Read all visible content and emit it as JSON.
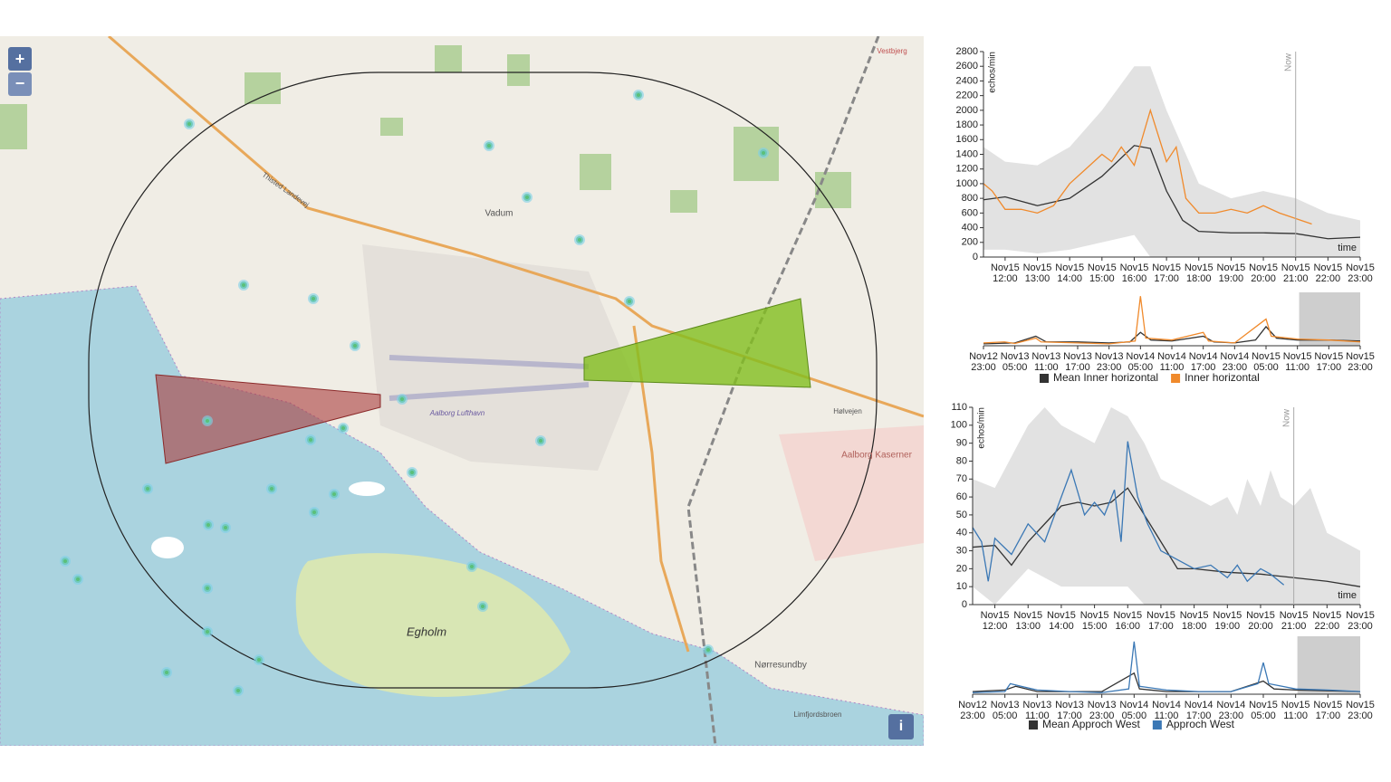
{
  "map": {
    "zoom_in": "+",
    "zoom_out": "−",
    "info": "i",
    "labels": [
      "Vadum",
      "Egholm",
      "Nørresundby",
      "Aalborg Lufthavn",
      "Aalborg Kaserner",
      "Limfjordsbroen",
      "Thisted Landevej",
      "Vestbjerg",
      "Hølvejen"
    ]
  },
  "chart_data": [
    {
      "type": "line",
      "ylabel": "echos/min",
      "xlabel": "time",
      "xlim": [
        11.33,
        23
      ],
      "ylim": [
        0,
        2800
      ],
      "yticks": [
        0,
        200,
        400,
        600,
        800,
        1000,
        1200,
        1400,
        1600,
        1800,
        2000,
        2200,
        2400,
        2600,
        2800
      ],
      "xticks": [
        {
          "value": 12,
          "label": "Nov15 12:00"
        },
        {
          "value": 13,
          "label": "Nov15 13:00"
        },
        {
          "value": 14,
          "label": "Nov15 14:00"
        },
        {
          "value": 15,
          "label": "Nov15 15:00"
        },
        {
          "value": 16,
          "label": "Nov15 16:00"
        },
        {
          "value": 17,
          "label": "Nov15 17:00"
        },
        {
          "value": 18,
          "label": "Nov15 18:00"
        },
        {
          "value": 19,
          "label": "Nov15 19:00"
        },
        {
          "value": 20,
          "label": "Nov15 20:00"
        },
        {
          "value": 21,
          "label": "Nov15 21:00"
        },
        {
          "value": 22,
          "label": "Nov15 22:00"
        },
        {
          "value": 23,
          "label": "Nov15 23:00"
        }
      ],
      "now": {
        "x": 21,
        "label": "Now"
      },
      "range": {
        "color": "#e2e2e2",
        "x": [
          11.33,
          12,
          13,
          14,
          15,
          16,
          16.5,
          17,
          18,
          19,
          20,
          21,
          22,
          23
        ],
        "high": [
          1500,
          1300,
          1250,
          1500,
          2000,
          2600,
          2600,
          2000,
          1000,
          800,
          900,
          800,
          600,
          500
        ],
        "low": [
          100,
          100,
          50,
          100,
          200,
          300,
          0,
          0,
          0,
          0,
          0,
          0,
          0,
          0
        ]
      },
      "series": [
        {
          "color": "#333333",
          "x": [
            11.33,
            12,
            13,
            14,
            15,
            16,
            16.5,
            17,
            17.5,
            18,
            19,
            20,
            21,
            22,
            23
          ],
          "values": [
            780,
            820,
            700,
            800,
            1100,
            1520,
            1480,
            900,
            500,
            350,
            330,
            330,
            320,
            250,
            270
          ]
        },
        {
          "color": "#f08a2c",
          "x": [
            11.33,
            11.6,
            12,
            12.5,
            13,
            13.5,
            14,
            14.5,
            15,
            15.3,
            15.6,
            16,
            16.5,
            17,
            17.3,
            17.6,
            18,
            18.5,
            19,
            19.5,
            20,
            20.5,
            21.5
          ],
          "values": [
            1000,
            900,
            650,
            650,
            600,
            700,
            1000,
            1200,
            1400,
            1300,
            1500,
            1250,
            2000,
            1300,
            1500,
            800,
            600,
            600,
            650,
            600,
            700,
            600,
            450
          ]
        }
      ]
    },
    {
      "type": "line",
      "xlim": [
        0,
        72
      ],
      "ylim": [
        0,
        2800
      ],
      "brush": [
        60.33,
        72
      ],
      "xticks": [
        {
          "value": 0,
          "label": "Nov12 23:00"
        },
        {
          "value": 6,
          "label": "Nov13 05:00"
        },
        {
          "value": 12,
          "label": "Nov13 11:00"
        },
        {
          "value": 18,
          "label": "Nov13 17:00"
        },
        {
          "value": 24,
          "label": "Nov13 23:00"
        },
        {
          "value": 30,
          "label": "Nov14 05:00"
        },
        {
          "value": 36,
          "label": "Nov14 11:00"
        },
        {
          "value": 42,
          "label": "Nov14 17:00"
        },
        {
          "value": 48,
          "label": "Nov14 23:00"
        },
        {
          "value": 54,
          "label": "Nov15 05:00"
        },
        {
          "value": 60,
          "label": "Nov15 11:00"
        },
        {
          "value": 66,
          "label": "Nov15 17:00"
        },
        {
          "value": 72,
          "label": "Nov15 23:00"
        }
      ],
      "series": [
        {
          "name": "Mean Inner horizontal",
          "color": "#333333",
          "x": [
            0,
            6,
            10,
            12,
            18,
            24,
            28,
            30,
            32,
            36,
            42,
            44,
            48,
            52,
            54,
            56,
            60,
            66,
            72
          ],
          "values": [
            100,
            150,
            500,
            200,
            200,
            150,
            200,
            700,
            300,
            250,
            500,
            200,
            150,
            300,
            1000,
            400,
            300,
            300,
            250
          ]
        },
        {
          "name": "Inner horizontal",
          "color": "#f08a2c",
          "x": [
            0,
            4,
            6,
            10,
            11,
            18,
            24,
            29,
            30,
            31,
            36,
            42,
            43,
            48,
            54,
            55,
            60,
            66,
            72
          ],
          "values": [
            150,
            200,
            120,
            400,
            200,
            150,
            100,
            250,
            2600,
            400,
            300,
            700,
            250,
            150,
            1400,
            500,
            350,
            300,
            200
          ]
        }
      ]
    },
    {
      "type": "line",
      "ylabel": "echos/min",
      "xlabel": "time",
      "xlim": [
        11.33,
        23
      ],
      "ylim": [
        0,
        110
      ],
      "yticks": [
        0,
        10,
        20,
        30,
        40,
        50,
        60,
        70,
        80,
        90,
        100,
        110
      ],
      "xticks": [
        {
          "value": 12,
          "label": "Nov15 12:00"
        },
        {
          "value": 13,
          "label": "Nov15 13:00"
        },
        {
          "value": 14,
          "label": "Nov15 14:00"
        },
        {
          "value": 15,
          "label": "Nov15 15:00"
        },
        {
          "value": 16,
          "label": "Nov15 16:00"
        },
        {
          "value": 17,
          "label": "Nov15 17:00"
        },
        {
          "value": 18,
          "label": "Nov15 18:00"
        },
        {
          "value": 19,
          "label": "Nov15 19:00"
        },
        {
          "value": 20,
          "label": "Nov15 20:00"
        },
        {
          "value": 21,
          "label": "Nov15 21:00"
        },
        {
          "value": 22,
          "label": "Nov15 22:00"
        },
        {
          "value": 23,
          "label": "Nov15 23:00"
        }
      ],
      "now": {
        "x": 21,
        "label": "Now"
      },
      "range": {
        "color": "#e2e2e2",
        "x": [
          11.33,
          12,
          13,
          13.5,
          14,
          15,
          15.5,
          16,
          16.5,
          17,
          18,
          18.5,
          19,
          19.3,
          19.6,
          20,
          20.3,
          20.6,
          21,
          21.5,
          22,
          23
        ],
        "high": [
          70,
          65,
          100,
          110,
          100,
          90,
          110,
          105,
          90,
          70,
          60,
          55,
          60,
          50,
          70,
          55,
          75,
          60,
          55,
          65,
          40,
          30
        ],
        "low": [
          10,
          0,
          20,
          15,
          10,
          10,
          10,
          10,
          0,
          0,
          0,
          0,
          0,
          0,
          0,
          0,
          0,
          0,
          0,
          0,
          0,
          0
        ]
      },
      "series": [
        {
          "color": "#333333",
          "x": [
            11.33,
            12,
            12.5,
            13,
            14,
            14.5,
            15,
            15.5,
            16,
            16.5,
            17,
            17.5,
            18,
            19,
            20,
            21,
            22,
            23
          ],
          "values": [
            32,
            33,
            22,
            35,
            55,
            57,
            55,
            57,
            65,
            50,
            35,
            20,
            20,
            18,
            17,
            15,
            13,
            10
          ]
        },
        {
          "color": "#3b78b5",
          "x": [
            11.33,
            11.6,
            11.8,
            12,
            12.5,
            13,
            13.5,
            14,
            14.3,
            14.7,
            15,
            15.3,
            15.6,
            15.8,
            16,
            16.3,
            16.6,
            17,
            17.5,
            18,
            18.5,
            19,
            19.3,
            19.6,
            20,
            20.3,
            20.7
          ],
          "values": [
            43,
            35,
            13,
            37,
            28,
            45,
            35,
            60,
            75,
            50,
            57,
            50,
            64,
            35,
            91,
            60,
            45,
            30,
            25,
            20,
            22,
            15,
            22,
            13,
            20,
            17,
            11
          ]
        }
      ]
    },
    {
      "type": "line",
      "xlim": [
        0,
        72
      ],
      "ylim": [
        0,
        110
      ],
      "brush": [
        60.33,
        72
      ],
      "xticks": [
        {
          "value": 0,
          "label": "Nov12 23:00"
        },
        {
          "value": 6,
          "label": "Nov13 05:00"
        },
        {
          "value": 12,
          "label": "Nov13 11:00"
        },
        {
          "value": 18,
          "label": "Nov13 17:00"
        },
        {
          "value": 24,
          "label": "Nov13 23:00"
        },
        {
          "value": 30,
          "label": "Nov14 05:00"
        },
        {
          "value": 36,
          "label": "Nov14 11:00"
        },
        {
          "value": 42,
          "label": "Nov14 17:00"
        },
        {
          "value": 48,
          "label": "Nov14 23:00"
        },
        {
          "value": 54,
          "label": "Nov15 05:00"
        },
        {
          "value": 60,
          "label": "Nov15 11:00"
        },
        {
          "value": 66,
          "label": "Nov15 17:00"
        },
        {
          "value": 72,
          "label": "Nov15 23:00"
        }
      ],
      "series": [
        {
          "name": "Mean Approch West",
          "color": "#333333",
          "x": [
            0,
            6,
            8,
            12,
            24,
            30,
            31,
            36,
            48,
            54,
            56,
            60,
            72
          ],
          "values": [
            5,
            8,
            15,
            5,
            5,
            40,
            10,
            5,
            5,
            25,
            10,
            8,
            5
          ]
        },
        {
          "name": "Approch West",
          "color": "#3b78b5",
          "x": [
            0,
            6,
            7,
            9,
            12,
            18,
            24,
            29,
            30,
            31,
            36,
            42,
            48,
            53,
            54,
            55,
            60,
            66,
            72
          ],
          "values": [
            3,
            5,
            20,
            15,
            8,
            5,
            3,
            10,
            100,
            15,
            8,
            5,
            5,
            20,
            60,
            20,
            10,
            8,
            5
          ]
        }
      ]
    }
  ]
}
